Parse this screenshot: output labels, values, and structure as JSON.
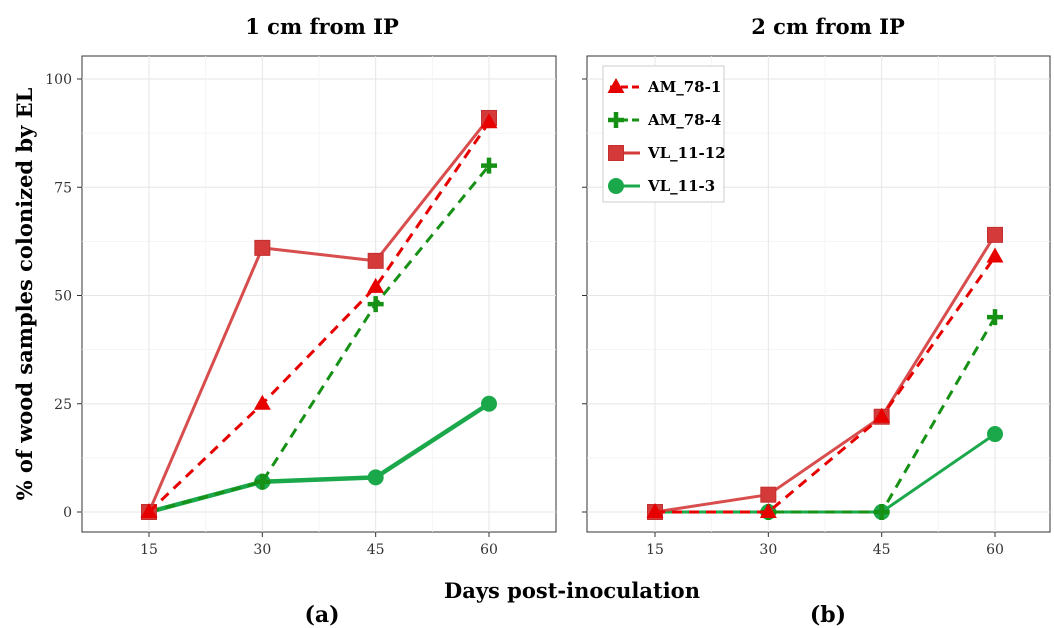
{
  "figure": {
    "xlabel": "Days post-inoculation",
    "ylabel": "% of wood samples colonized by EL"
  },
  "legend": {
    "entries": [
      {
        "name": "AM_78-1",
        "marker": "triangle",
        "color": "#e60000",
        "dash": true
      },
      {
        "name": "AM_78-4",
        "marker": "cross",
        "color": "#169116",
        "dash": true
      },
      {
        "name": "VL_11-12",
        "marker": "square",
        "color": "#d43a3a",
        "dash": false
      },
      {
        "name": "VL_11-3",
        "marker": "circle",
        "color": "#1aa84a",
        "dash": false
      }
    ]
  },
  "chart_data": [
    {
      "type": "line",
      "title": "1 cm from IP",
      "panel_label": "(a)",
      "x": [
        15,
        30,
        45,
        60
      ],
      "xlim": [
        15,
        60
      ],
      "ylim": [
        0,
        100
      ],
      "yticks": [
        0,
        25,
        50,
        75,
        100
      ],
      "grid": true,
      "series": [
        {
          "name": "AM_78-1",
          "values": [
            0,
            25,
            52,
            90
          ]
        },
        {
          "name": "AM_78-4",
          "values": [
            0,
            7,
            48,
            80
          ]
        },
        {
          "name": "VL_11-12",
          "values": [
            0,
            61,
            58,
            91
          ]
        },
        {
          "name": "VL_11-3",
          "values": [
            0,
            7,
            8,
            25
          ]
        }
      ]
    },
    {
      "type": "line",
      "title": "2 cm from IP",
      "panel_label": "(b)",
      "x": [
        15,
        30,
        45,
        60
      ],
      "xlim": [
        15,
        60
      ],
      "ylim": [
        0,
        100
      ],
      "yticks": [
        0,
        25,
        50,
        75,
        100
      ],
      "grid": true,
      "legend_position": "top-left",
      "series": [
        {
          "name": "AM_78-1",
          "values": [
            0,
            0,
            22,
            59
          ]
        },
        {
          "name": "AM_78-4",
          "values": [
            0,
            0,
            0,
            45
          ]
        },
        {
          "name": "VL_11-12",
          "values": [
            0,
            4,
            22,
            64
          ]
        },
        {
          "name": "VL_11-3",
          "values": [
            0,
            0,
            0,
            18
          ]
        }
      ]
    }
  ]
}
